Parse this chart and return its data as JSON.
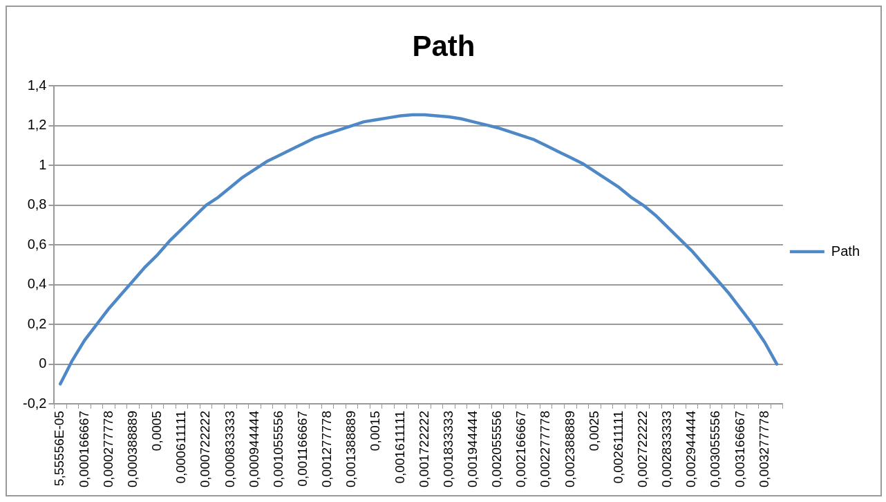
{
  "chart_data": {
    "type": "line",
    "title": "Path",
    "categories": [
      "5,55556E-05",
      null,
      "0,000166667",
      null,
      "0,000277778",
      null,
      "0,000388889",
      null,
      "0,0005",
      null,
      "0,000611111",
      null,
      "0,000722222",
      null,
      "0,000833333",
      null,
      "0,000944444",
      null,
      "0,001055556",
      null,
      "0,001166667",
      null,
      "0,001277778",
      null,
      "0,001388889",
      null,
      "0,0015",
      null,
      "0,001611111",
      null,
      "0,001722222",
      null,
      "0,001833333",
      null,
      "0,001944444",
      null,
      "0,002055556",
      null,
      "0,002166667",
      null,
      "0,002277778",
      null,
      "0,002388889",
      null,
      "0,0025",
      null,
      "0,002611111",
      null,
      "0,002722222",
      null,
      "0,002833333",
      null,
      "0,002944444",
      null,
      "0,003055556",
      null,
      "0,003166667",
      null,
      "0,003277778",
      null
    ],
    "series": [
      {
        "name": "Path",
        "color": "#4f88c6",
        "values": [
          -0.1,
          0.02,
          0.12,
          0.2,
          0.28,
          0.35,
          0.42,
          0.49,
          0.55,
          0.62,
          0.68,
          0.74,
          0.8,
          0.84,
          0.89,
          0.94,
          0.98,
          1.02,
          1.05,
          1.08,
          1.11,
          1.14,
          1.16,
          1.18,
          1.2,
          1.22,
          1.23,
          1.24,
          1.25,
          1.255,
          1.255,
          1.25,
          1.245,
          1.235,
          1.22,
          1.205,
          1.19,
          1.17,
          1.15,
          1.13,
          1.1,
          1.07,
          1.04,
          1.01,
          0.97,
          0.93,
          0.89,
          0.84,
          0.8,
          0.75,
          0.69,
          0.63,
          0.57,
          0.5,
          0.43,
          0.36,
          0.28,
          0.2,
          0.11,
          0.0
        ]
      }
    ],
    "ylim": [
      -0.2,
      1.4
    ],
    "yticks": [
      {
        "value": -0.2,
        "label": "-0,2"
      },
      0,
      {
        "value": 0.2,
        "label": "0,2"
      },
      {
        "value": 0.4,
        "label": "0,4"
      },
      {
        "value": 0.6,
        "label": "0,6"
      },
      {
        "value": 0.8,
        "label": "0,8"
      },
      1,
      {
        "value": 1.2,
        "label": "1,2"
      },
      {
        "value": 1.4,
        "label": "1,4"
      }
    ],
    "grid": "y",
    "legend": "right",
    "marker": "none",
    "line_style": "solid"
  }
}
